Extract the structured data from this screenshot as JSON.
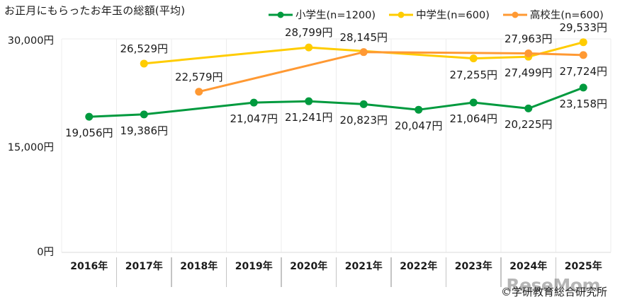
{
  "title": "お正月にもらったお年玉の総額(平均)",
  "legend": [
    {
      "label": "小学生(n=1200)",
      "color": "#009a3e"
    },
    {
      "label": "中学生(n=600)",
      "color": "#ffcc00"
    },
    {
      "label": "高校生(n=600)",
      "color": "#ff9933"
    }
  ],
  "y_ticks": [
    "30,000円",
    "15,000円",
    "0円"
  ],
  "x_labels": [
    "2016年",
    "2017年",
    "2018年",
    "2019年",
    "2020年",
    "2021年",
    "2022年",
    "2023年",
    "2024年",
    "2025年"
  ],
  "credit": "©学研教育総合研究所",
  "watermark": "ReseMom",
  "chart_data": {
    "type": "line",
    "title": "お正月にもらったお年玉の総額(平均)",
    "xlabel": "",
    "ylabel": "円",
    "ylim": [
      0,
      30000
    ],
    "y_ticks": [
      0,
      15000,
      30000
    ],
    "grid": "vertical category lines",
    "legend_position": "top-right",
    "categories": [
      "2016年",
      "2017年",
      "2018年",
      "2019年",
      "2020年",
      "2021年",
      "2022年",
      "2023年",
      "2024年",
      "2025年"
    ],
    "series": [
      {
        "name": "小学生(n=1200)",
        "color": "#009a3e",
        "values": [
          19056,
          19386,
          null,
          21047,
          21241,
          20823,
          20047,
          21064,
          20225,
          23158
        ],
        "labels": [
          "19,056円",
          "19,386円",
          null,
          "21,047円",
          "21,241円",
          "20,823円",
          "20,047円",
          "21,064円",
          "20,225円",
          "23,158円"
        ]
      },
      {
        "name": "中学生(n=600)",
        "color": "#ffcc00",
        "values": [
          null,
          26529,
          null,
          null,
          28799,
          null,
          null,
          27255,
          27499,
          29533
        ],
        "labels": [
          null,
          "26,529円",
          null,
          null,
          "28,799円",
          null,
          null,
          "27,255円",
          "27,499円",
          "29,533円"
        ]
      },
      {
        "name": "高校生(n=600)",
        "color": "#ff9933",
        "values": [
          null,
          null,
          22579,
          null,
          null,
          28145,
          null,
          null,
          27963,
          27724
        ],
        "labels": [
          null,
          null,
          "22,579円",
          null,
          null,
          "28,145円",
          null,
          null,
          "27,963円",
          "27,724円"
        ]
      }
    ]
  }
}
